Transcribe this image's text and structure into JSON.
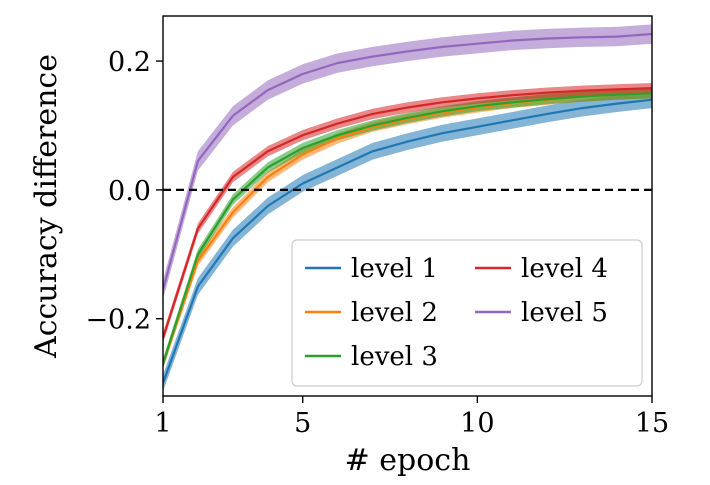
{
  "chart_data": {
    "type": "line",
    "title": "",
    "xlabel": "# epoch",
    "ylabel": "Accuracy difference",
    "xlim": [
      1,
      15
    ],
    "ylim": [
      -0.32,
      0.27
    ],
    "xticks": [
      1,
      5,
      10,
      15
    ],
    "xtick_labels": [
      "1",
      "5",
      "10",
      "15"
    ],
    "yticks": [
      -0.2,
      0.0,
      0.2
    ],
    "ytick_labels": [
      "−0.2",
      "0.0",
      "0.2"
    ],
    "reference_line": {
      "y": 0.0,
      "style": "dashed",
      "color": "#000000"
    },
    "grid": false,
    "legend": {
      "position": "lower-right",
      "columns": 2
    },
    "x": [
      1,
      2,
      3,
      4,
      5,
      6,
      7,
      8,
      9,
      10,
      11,
      12,
      13,
      14,
      15
    ],
    "series": [
      {
        "name": "level 1",
        "color": "#1f77b4",
        "values": [
          -0.3,
          -0.15,
          -0.075,
          -0.025,
          0.01,
          0.035,
          0.06,
          0.075,
          0.088,
          0.098,
          0.108,
          0.118,
          0.127,
          0.134,
          0.14
        ],
        "band": 0.013
      },
      {
        "name": "level 2",
        "color": "#ff7f0e",
        "values": [
          -0.27,
          -0.11,
          -0.035,
          0.02,
          0.055,
          0.08,
          0.098,
          0.11,
          0.12,
          0.128,
          0.135,
          0.14,
          0.145,
          0.148,
          0.15
        ],
        "band": 0.008
      },
      {
        "name": "level 3",
        "color": "#2ca02c",
        "values": [
          -0.27,
          -0.1,
          -0.015,
          0.035,
          0.065,
          0.085,
          0.1,
          0.112,
          0.122,
          0.13,
          0.136,
          0.141,
          0.145,
          0.148,
          0.15
        ],
        "band": 0.008
      },
      {
        "name": "level 4",
        "color": "#d62728",
        "values": [
          -0.23,
          -0.06,
          0.02,
          0.06,
          0.085,
          0.103,
          0.118,
          0.128,
          0.136,
          0.142,
          0.147,
          0.151,
          0.154,
          0.156,
          0.158
        ],
        "band": 0.008
      },
      {
        "name": "level 5",
        "color": "#9467bd",
        "values": [
          -0.155,
          0.045,
          0.115,
          0.155,
          0.18,
          0.197,
          0.207,
          0.215,
          0.222,
          0.227,
          0.232,
          0.235,
          0.237,
          0.238,
          0.242
        ],
        "band": 0.015
      }
    ]
  }
}
